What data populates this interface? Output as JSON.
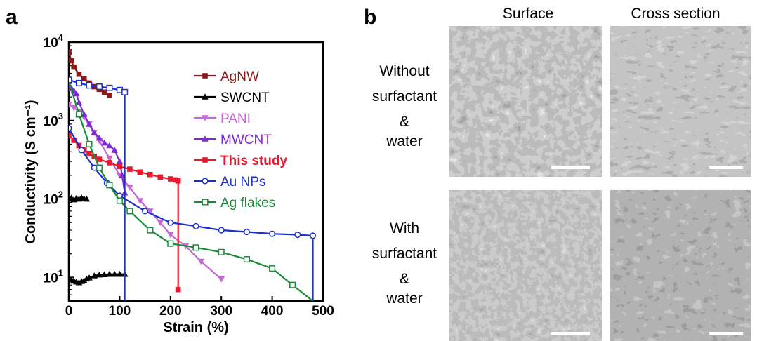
{
  "panels": {
    "a": "a",
    "b": "b"
  },
  "chart_data": {
    "type": "line",
    "title": "",
    "xlabel": "Strain (%)",
    "ylabel": "Conductivity (S cm⁻¹)",
    "xlim": [
      0,
      500
    ],
    "ylim": [
      5,
      10000
    ],
    "yscale": "log",
    "xticks": [
      "0",
      "100",
      "200",
      "300",
      "400",
      "500"
    ],
    "yticks": [
      {
        "value": 10,
        "base": "10",
        "exp": "1"
      },
      {
        "value": 100,
        "base": "10",
        "exp": "2"
      },
      {
        "value": 1000,
        "base": "10",
        "exp": "3"
      },
      {
        "value": 10000,
        "base": "10",
        "exp": "4"
      }
    ],
    "legend_position": "top-right",
    "series": [
      {
        "name": "AgNW",
        "color": "#8b1a1a",
        "marker": "square-filled",
        "x": [
          0,
          5,
          10,
          20,
          30,
          40,
          50,
          60,
          70,
          80
        ],
        "y": [
          7500,
          5800,
          4800,
          3900,
          3400,
          3000,
          2700,
          2500,
          2300,
          2100
        ]
      },
      {
        "name": "SWCNT",
        "color": "#000000",
        "marker": "triangle-filled",
        "segments": [
          {
            "x": [
              0,
              5,
              10,
              15,
              20,
              25,
              30,
              35
            ],
            "y": [
              100,
              103,
              98,
              102,
              100,
              104,
              101,
              100
            ]
          },
          {
            "x": [
              0,
              5,
              10,
              15,
              20,
              25,
              30,
              35,
              40,
              50,
              60,
              70,
              80,
              90,
              100,
              110
            ],
            "y": [
              9.5,
              9.3,
              9.0,
              8.8,
              8.6,
              8.9,
              9.1,
              9.6,
              9.9,
              10.5,
              10.8,
              10.9,
              11.0,
              11.0,
              11.0,
              11.0
            ]
          }
        ]
      },
      {
        "name": "PANI",
        "color": "#c865d8",
        "marker": "triangle-down-filled",
        "x": [
          0,
          10,
          20,
          30,
          40,
          50,
          60,
          80,
          100,
          120,
          140,
          160,
          180,
          200,
          230,
          260,
          300
        ],
        "y": [
          1600,
          1450,
          1300,
          1100,
          900,
          700,
          550,
          330,
          200,
          140,
          95,
          70,
          50,
          35,
          25,
          16,
          9.5
        ]
      },
      {
        "name": "MWCNT",
        "color": "#7d2ad1",
        "marker": "triangle-filled",
        "x": [
          0,
          5,
          10,
          15,
          20,
          30,
          40,
          50,
          60,
          70,
          80,
          90,
          100,
          105,
          110
        ],
        "y": [
          2800,
          2600,
          2400,
          2200,
          1700,
          1200,
          900,
          700,
          600,
          520,
          480,
          420,
          300,
          200,
          120
        ]
      },
      {
        "name": "This study",
        "color": "#e8192c",
        "marker": "square-filled",
        "x": [
          0,
          10,
          20,
          30,
          40,
          50,
          60,
          80,
          100,
          120,
          140,
          160,
          180,
          200,
          210,
          215,
          215
        ],
        "y": [
          650,
          560,
          480,
          420,
          380,
          350,
          320,
          290,
          260,
          240,
          220,
          205,
          190,
          180,
          175,
          170,
          7
        ]
      },
      {
        "name": "Au NPs",
        "color": "#1c2fd0",
        "marker": "circle-open",
        "x": [
          0,
          25,
          50,
          75,
          100,
          150,
          200,
          250,
          300,
          350,
          400,
          450,
          480,
          480
        ],
        "y": [
          800,
          420,
          250,
          160,
          110,
          70,
          50,
          45,
          40,
          38,
          36,
          35,
          34,
          5
        ]
      },
      {
        "name": "Ag flakes",
        "color": "#1a8a3a",
        "marker": "square-open",
        "x": [
          0,
          20,
          40,
          60,
          80,
          100,
          120,
          160,
          200,
          250,
          300,
          350,
          400,
          440,
          480
        ],
        "y": [
          3200,
          1200,
          500,
          250,
          150,
          95,
          70,
          40,
          27,
          24,
          21,
          17,
          13,
          8,
          5
        ]
      },
      {
        "name": "",
        "color": "#1c2fd0",
        "marker": "square-open",
        "x": [
          0,
          20,
          40,
          60,
          80,
          100,
          110,
          110
        ],
        "y": [
          3300,
          3000,
          2800,
          2700,
          2600,
          2450,
          2300,
          5
        ]
      }
    ]
  },
  "images": {
    "col_surface": "Surface",
    "col_cross": "Cross section",
    "row1": [
      "Without",
      "surfactant",
      "&",
      "water"
    ],
    "row2": [
      "With",
      "surfactant",
      "&",
      "water"
    ]
  }
}
